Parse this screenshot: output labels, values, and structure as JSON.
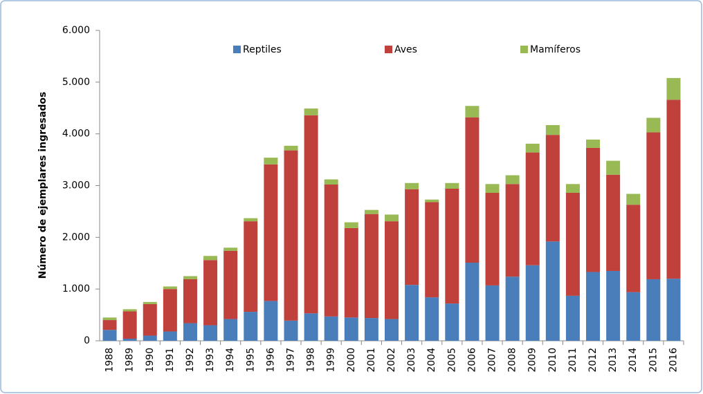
{
  "chart_data": {
    "type": "stacked_bar",
    "y_label": "Número de ejemplares ingresados",
    "categories": [
      "1988",
      "1989",
      "1990",
      "1991",
      "1992",
      "1993",
      "1994",
      "1995",
      "1996",
      "1997",
      "1998",
      "1999",
      "2000",
      "2001",
      "2002",
      "2003",
      "2004",
      "2005",
      "2006",
      "2007",
      "2008",
      "2009",
      "2010",
      "2011",
      "2012",
      "2013",
      "2014",
      "2015",
      "2016"
    ],
    "series": [
      {
        "name": "Reptiles",
        "color": "#4a7ebb",
        "values": [
          210,
          40,
          100,
          180,
          340,
          300,
          420,
          560,
          770,
          390,
          530,
          470,
          450,
          440,
          420,
          1080,
          840,
          720,
          1510,
          1070,
          1240,
          1460,
          1920,
          870,
          1330,
          1350,
          940,
          1190,
          1200
        ]
      },
      {
        "name": "Aves",
        "color": "#c0403c",
        "values": [
          190,
          530,
          610,
          820,
          850,
          1260,
          1320,
          1750,
          2640,
          3290,
          3830,
          2550,
          1730,
          2010,
          1890,
          1850,
          1840,
          2220,
          2810,
          1790,
          1790,
          2180,
          2060,
          1990,
          2400,
          1860,
          1690,
          2840,
          3460
        ]
      },
      {
        "name": "Mamíferos",
        "color": "#98b954",
        "values": [
          50,
          40,
          40,
          50,
          60,
          80,
          60,
          60,
          130,
          90,
          130,
          100,
          110,
          80,
          130,
          120,
          50,
          110,
          220,
          170,
          170,
          170,
          190,
          170,
          160,
          270,
          210,
          280,
          420
        ]
      }
    ],
    "ylim": [
      0,
      6000
    ],
    "yticks": [
      0,
      {
        "value": 1000,
        "label": "1.000"
      },
      {
        "value": 2000,
        "label": "2.000"
      },
      {
        "value": 3000,
        "label": "3.000"
      },
      {
        "value": 4000,
        "label": "4.000"
      },
      {
        "value": 5000,
        "label": "5.000"
      },
      {
        "value": 6000,
        "label": "6.000"
      }
    ],
    "legend": "top"
  }
}
